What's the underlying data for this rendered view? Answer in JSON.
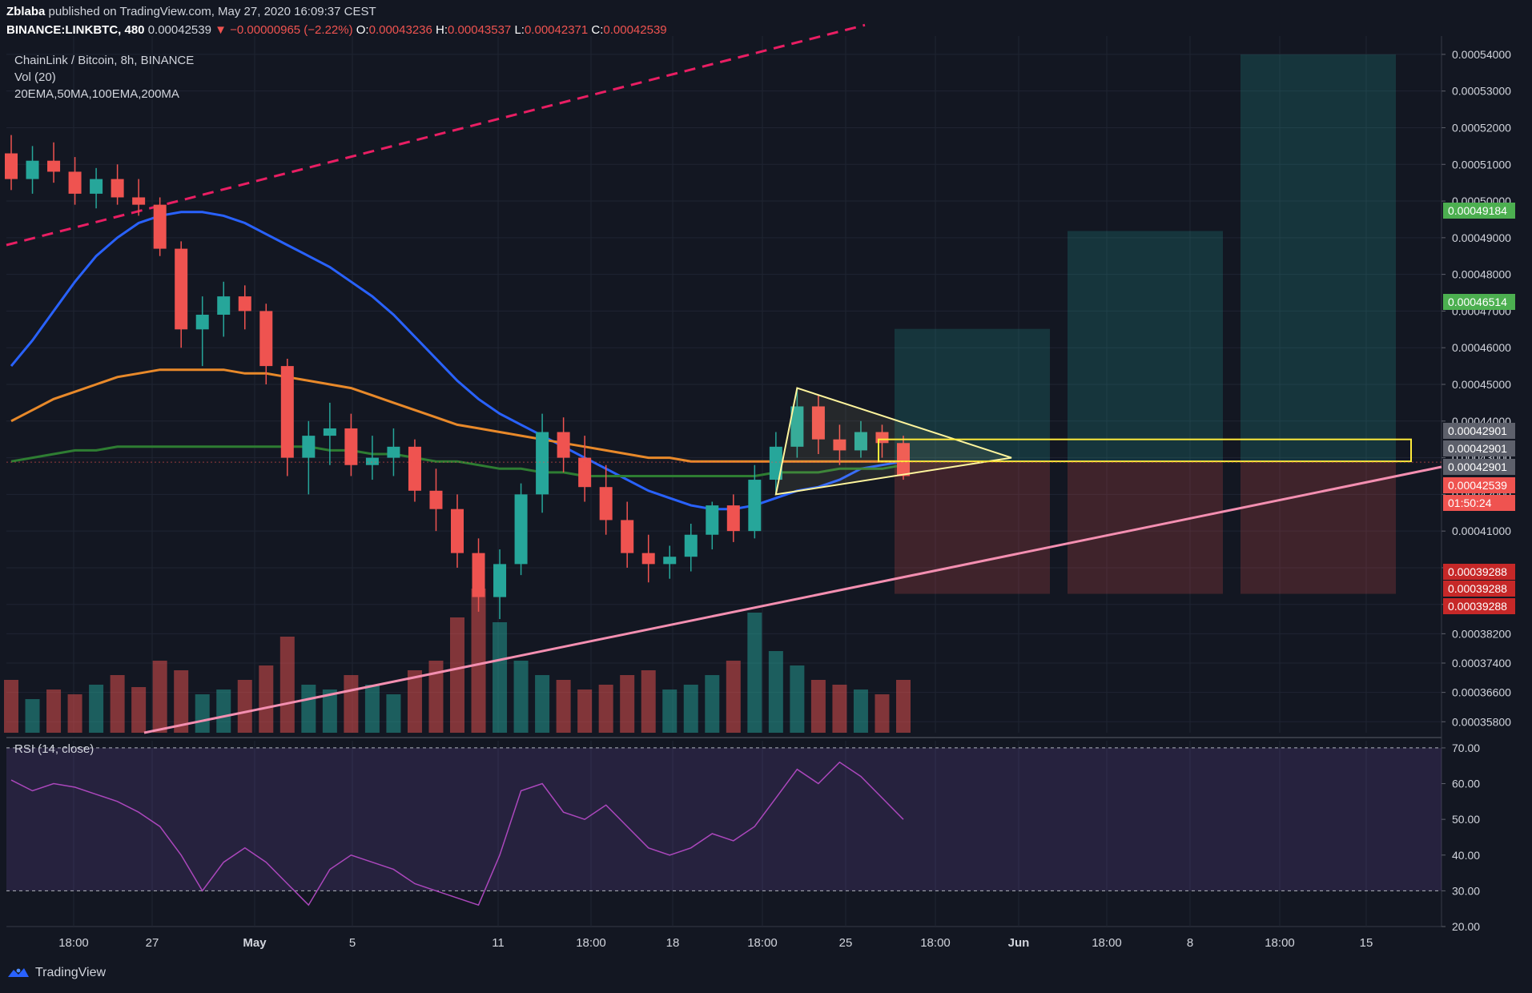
{
  "header": {
    "author": "Zblaba",
    "published": "published on TradingView.com, May 27, 2020 16:09:37 CEST",
    "symbol": "BINANCE:LINKBTC, 480",
    "last": "0.00042539",
    "change": "▼ −0.00000965 (−2.22%)",
    "o_label": "O:",
    "o": "0.00043236",
    "h_label": "H:",
    "h": "0.00043537",
    "l_label": "L:",
    "l": "0.00042371",
    "c_label": "C:",
    "c": "0.00042539"
  },
  "legend": {
    "title": "ChainLink / Bitcoin, 8h, BINANCE",
    "volume": "Vol (20)",
    "mas": "20EMA,50MA,100EMA,200MA"
  },
  "rsi_label": "RSI (14, close)",
  "footer": {
    "brand": "TradingView"
  },
  "colors": {
    "background": "#131722",
    "up": "#26a69a",
    "down": "#ef5350",
    "ema20": "#2962ff",
    "ma50": "#e8892a",
    "ema100": "#2e7d32",
    "trend_dash": "#e91e63",
    "trend_support": "#f48fb1",
    "triangle": "#fff59d",
    "rect": "#ffeb3b",
    "rsi": "#ab47bc"
  },
  "chart_data": [
    {
      "type": "candlestick",
      "title": "ChainLink / Bitcoin, 8h, BINANCE",
      "price_axis": {
        "ticks": [
          "0.00054000",
          "0.00053000",
          "0.00052000",
          "0.00051000",
          "0.00050000",
          "0.00049000",
          "0.00048000",
          "0.00047000",
          "0.00046000",
          "0.00045000",
          "0.00044000",
          "0.00043000",
          "0.00042000",
          "0.00041000",
          "0.00040000",
          "0.00039000",
          "0.00038200",
          "0.00037400",
          "0.00036600",
          "0.00035800"
        ],
        "range": [
          0.000355,
          0.000545
        ]
      },
      "x_axis": {
        "tick_labels": [
          "18:00",
          "27",
          "May",
          "5",
          "11",
          "18:00",
          "18",
          "18:00",
          "25",
          "18:00",
          "Jun",
          "18:00",
          "8",
          "18:00",
          "15"
        ],
        "bold_labels": [
          "May",
          "Jun"
        ],
        "range": [
          "Apr 25 2020",
          "Jun 19 2020"
        ]
      },
      "price_labels": [
        {
          "value": "0.00049184",
          "color": "#4caf50"
        },
        {
          "value": "0.00046514",
          "color": "#4caf50"
        },
        {
          "value": "0.00042901",
          "color": "#5d606b"
        },
        {
          "value": "0.00042901",
          "color": "#5d606b"
        },
        {
          "value": "0.00042901",
          "color": "#5d606b"
        },
        {
          "value": "0.00042539",
          "color": "#ef5350"
        },
        {
          "value": "01:50:24",
          "color": "#ef5350"
        },
        {
          "value": "0.00039288",
          "color": "#c62828"
        },
        {
          "value": "0.00039288",
          "color": "#c62828"
        },
        {
          "value": "0.00039288",
          "color": "#c62828"
        }
      ],
      "series": [
        {
          "name": "20EMA",
          "values": [
            0.000455,
            0.000462,
            0.00047,
            0.000478,
            0.000485,
            0.00049,
            0.000494,
            0.000496,
            0.000497,
            0.000497,
            0.000496,
            0.000494,
            0.000491,
            0.000488,
            0.000485,
            0.000482,
            0.000478,
            0.000474,
            0.000469,
            0.000463,
            0.000457,
            0.000451,
            0.000446,
            0.000442,
            0.000439,
            0.000436,
            0.000433,
            0.00043,
            0.000427,
            0.000424,
            0.000421,
            0.000419,
            0.000417,
            0.000416,
            0.000416,
            0.000417,
            0.000419,
            0.000421,
            0.000422,
            0.000424,
            0.000427,
            0.000428,
            0.000429
          ]
        },
        {
          "name": "50MA",
          "values": [
            0.00044,
            0.000443,
            0.000446,
            0.000448,
            0.00045,
            0.000452,
            0.000453,
            0.000454,
            0.000454,
            0.000454,
            0.000454,
            0.000453,
            0.000453,
            0.000452,
            0.000451,
            0.00045,
            0.000449,
            0.000447,
            0.000445,
            0.000443,
            0.000441,
            0.000439,
            0.000438,
            0.000437,
            0.000436,
            0.000435,
            0.000434,
            0.000433,
            0.000432,
            0.000431,
            0.00043,
            0.00043,
            0.000429,
            0.000429,
            0.000429,
            0.000429,
            0.000429,
            0.000429,
            0.000429,
            0.000429,
            0.000429,
            0.000429,
            0.000429
          ]
        },
        {
          "name": "100EMA",
          "values": [
            0.000429,
            0.00043,
            0.000431,
            0.000432,
            0.000432,
            0.000433,
            0.000433,
            0.000433,
            0.000433,
            0.000433,
            0.000433,
            0.000433,
            0.000433,
            0.000433,
            0.000433,
            0.000432,
            0.000432,
            0.000431,
            0.000431,
            0.00043,
            0.000429,
            0.000429,
            0.000428,
            0.000427,
            0.000427,
            0.000426,
            0.000426,
            0.000425,
            0.000425,
            0.000425,
            0.000425,
            0.000425,
            0.000425,
            0.000425,
            0.000425,
            0.000425,
            0.000426,
            0.000426,
            0.000426,
            0.000427,
            0.000427,
            0.000427,
            0.000428
          ]
        }
      ],
      "candles": [
        [
          0.000513,
          0.000518,
          0.000503,
          0.000506
        ],
        [
          0.000506,
          0.000515,
          0.000502,
          0.000511
        ],
        [
          0.000511,
          0.000516,
          0.000505,
          0.000508
        ],
        [
          0.000508,
          0.000512,
          0.000499,
          0.000502
        ],
        [
          0.000502,
          0.000509,
          0.000498,
          0.000506
        ],
        [
          0.000506,
          0.00051,
          0.000499,
          0.000501
        ],
        [
          0.000501,
          0.000506,
          0.000496,
          0.000499
        ],
        [
          0.000499,
          0.000501,
          0.000485,
          0.000487
        ],
        [
          0.000487,
          0.000489,
          0.00046,
          0.000465
        ],
        [
          0.000465,
          0.000474,
          0.000455,
          0.000469
        ],
        [
          0.000469,
          0.000478,
          0.000463,
          0.000474
        ],
        [
          0.000474,
          0.000477,
          0.000465,
          0.00047
        ],
        [
          0.00047,
          0.000472,
          0.00045,
          0.000455
        ],
        [
          0.000455,
          0.000457,
          0.000425,
          0.00043
        ],
        [
          0.00043,
          0.00044,
          0.00042,
          0.000436
        ],
        [
          0.000436,
          0.000445,
          0.000428,
          0.000438
        ],
        [
          0.000438,
          0.000442,
          0.000425,
          0.000428
        ],
        [
          0.000428,
          0.000436,
          0.000424,
          0.00043
        ],
        [
          0.00043,
          0.000438,
          0.000425,
          0.000433
        ],
        [
          0.000433,
          0.000435,
          0.000418,
          0.000421
        ],
        [
          0.000421,
          0.000427,
          0.00041,
          0.000416
        ],
        [
          0.000416,
          0.00042,
          0.0004,
          0.000404
        ],
        [
          0.000404,
          0.000408,
          0.000388,
          0.000392
        ],
        [
          0.000392,
          0.000405,
          0.000386,
          0.000401
        ],
        [
          0.000401,
          0.000423,
          0.000398,
          0.00042
        ],
        [
          0.00042,
          0.000442,
          0.000415,
          0.000437
        ],
        [
          0.000437,
          0.000441,
          0.000426,
          0.00043
        ],
        [
          0.00043,
          0.000436,
          0.000418,
          0.000422
        ],
        [
          0.000422,
          0.000428,
          0.000409,
          0.000413
        ],
        [
          0.000413,
          0.000418,
          0.0004,
          0.000404
        ],
        [
          0.000404,
          0.000409,
          0.000396,
          0.000401
        ],
        [
          0.000401,
          0.000406,
          0.000397,
          0.000403
        ],
        [
          0.000403,
          0.000412,
          0.000399,
          0.000409
        ],
        [
          0.000409,
          0.000418,
          0.000405,
          0.000417
        ],
        [
          0.000417,
          0.00042,
          0.000407,
          0.00041
        ],
        [
          0.00041,
          0.000428,
          0.000408,
          0.000424
        ],
        [
          0.000424,
          0.000437,
          0.00042,
          0.000433
        ],
        [
          0.000433,
          0.000449,
          0.00043,
          0.000444
        ],
        [
          0.000444,
          0.000447,
          0.000431,
          0.000435
        ],
        [
          0.000435,
          0.000439,
          0.000428,
          0.000432
        ],
        [
          0.000432,
          0.00044,
          0.00043,
          0.000437
        ],
        [
          0.000437,
          0.000439,
          0.00043,
          0.000434
        ],
        [
          0.000434,
          0.000436,
          0.000424,
          0.000425
        ]
      ],
      "volume": [
        22,
        14,
        18,
        16,
        20,
        24,
        19,
        30,
        26,
        16,
        18,
        22,
        28,
        40,
        20,
        18,
        24,
        20,
        16,
        26,
        30,
        48,
        60,
        46,
        30,
        24,
        22,
        18,
        20,
        24,
        26,
        18,
        20,
        24,
        30,
        50,
        34,
        28,
        22,
        20,
        18,
        16,
        22
      ]
    },
    {
      "type": "line",
      "title": "RSI (14, close)",
      "y_ticks": [
        "70.00",
        "60.00",
        "50.00",
        "40.00",
        "30.00",
        "20.00"
      ],
      "ylim": [
        20,
        72
      ],
      "levels": [
        70,
        30
      ],
      "series": [
        {
          "name": "RSI (14, close)",
          "values": [
            61,
            58,
            60,
            59,
            57,
            55,
            52,
            48,
            40,
            30,
            38,
            42,
            38,
            32,
            26,
            36,
            40,
            38,
            36,
            32,
            30,
            28,
            26,
            40,
            58,
            60,
            52,
            50,
            54,
            48,
            42,
            40,
            42,
            46,
            44,
            48,
            56,
            64,
            60,
            66,
            62,
            56,
            50
          ]
        }
      ]
    }
  ]
}
